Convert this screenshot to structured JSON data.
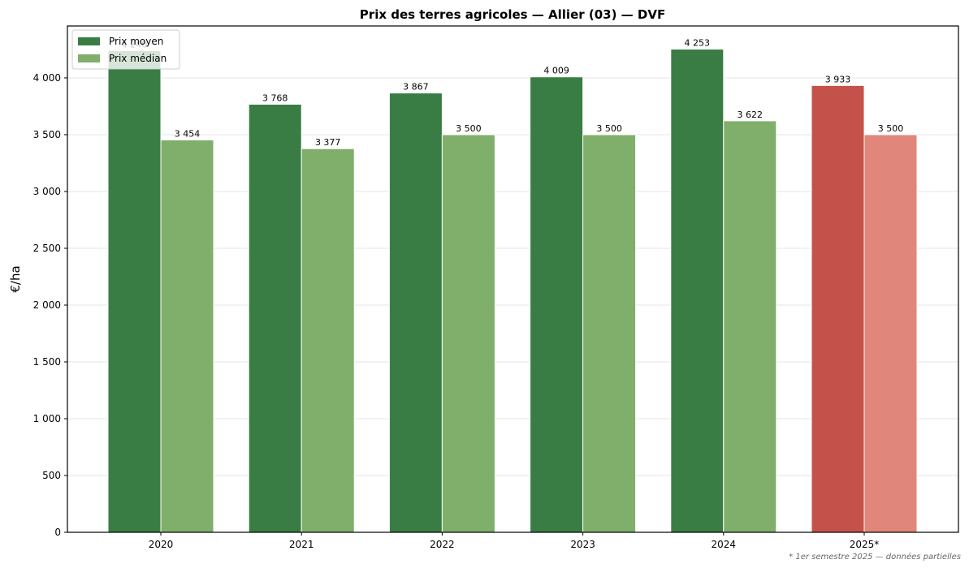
{
  "chart_data": {
    "type": "bar",
    "title": "Prix des terres agricoles — Allier (03) — DVF",
    "xlabel": "",
    "ylabel": "€/ha",
    "categories": [
      "2020",
      "2021",
      "2022",
      "2023",
      "2024",
      "2025*"
    ],
    "series": [
      {
        "name": "Prix moyen",
        "values": [
          4240,
          3768,
          3867,
          4009,
          4253,
          3933
        ],
        "labels": [
          "4 240",
          "3 768",
          "3 867",
          "4 009",
          "4 253",
          "3 933"
        ],
        "color": "#3a7d44",
        "highlight_color": "#c4524a"
      },
      {
        "name": "Prix médian",
        "values": [
          3454,
          3377,
          3500,
          3500,
          3622,
          3500
        ],
        "labels": [
          "3 454",
          "3 377",
          "3 500",
          "3 500",
          "3 622",
          "3 500"
        ],
        "color": "#7faf6a",
        "highlight_color": "#e0867a"
      }
    ],
    "highlight_categories": [
      "2025*"
    ],
    "ylim": [
      0,
      4457
    ],
    "yticks": [
      0,
      500,
      1000,
      1500,
      2000,
      2500,
      3000,
      3500,
      4000
    ],
    "ytick_labels": [
      "0",
      "500",
      "1 000",
      "1 500",
      "2 000",
      "2 500",
      "3 000",
      "3 500",
      "4 000"
    ],
    "grid": "y",
    "legend_position": "upper left",
    "footnote": "* 1er semestre 2025 — données partielles"
  }
}
